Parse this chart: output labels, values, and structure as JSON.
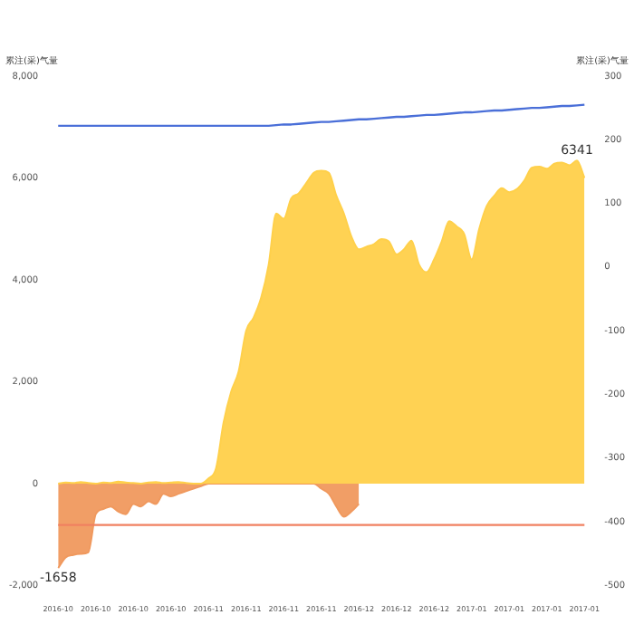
{
  "chart_data": {
    "type": "area",
    "ylabel": "累注(采)气量",
    "y2label": "累注(采)气量",
    "categories": [
      "2016-10",
      null,
      null,
      null,
      null,
      "2016-10",
      null,
      null,
      null,
      null,
      "2016-10",
      null,
      null,
      null,
      null,
      "2016-10",
      null,
      null,
      null,
      null,
      "2016-11",
      null,
      null,
      null,
      null,
      "2016-11",
      null,
      null,
      null,
      null,
      "2016-11",
      null,
      null,
      null,
      null,
      "2016-11",
      null,
      null,
      null,
      null,
      "2016-12",
      null,
      null,
      null,
      null,
      "2016-12",
      null,
      null,
      null,
      null,
      "2016-12",
      null,
      null,
      null,
      null,
      "2017-01",
      null,
      null,
      null,
      null,
      "2017-01",
      null,
      null,
      null,
      null,
      "2017-01",
      null,
      null,
      null,
      null,
      "2017-01"
    ],
    "series": [
      {
        "color": "#ffd04a",
        "values": [
          0,
          20,
          10,
          30,
          10,
          0,
          20,
          10,
          40,
          20,
          10,
          0,
          20,
          30,
          10,
          20,
          30,
          10,
          0,
          0,
          100,
          300,
          1200,
          1800,
          2200,
          3000,
          3260,
          3650,
          4300,
          5300,
          5200,
          5600,
          5700,
          5900,
          6100,
          6140,
          6100,
          5650,
          5300,
          4850,
          4600,
          4650,
          4700,
          4800,
          4750,
          4500,
          4600,
          4770,
          4300,
          4150,
          4400,
          4750,
          5150,
          5050,
          4900,
          4400,
          5000,
          5450,
          5650,
          5800,
          5720,
          5780,
          5950,
          6200,
          6220,
          6180,
          6280,
          6300,
          6250,
          6341,
          6000
        ],
        "value_labels": [
          null,
          null,
          null,
          null,
          null,
          null,
          null,
          null,
          null,
          null,
          null,
          null,
          null,
          null,
          null,
          null,
          null,
          null,
          null,
          null,
          null,
          null,
          null,
          null,
          null,
          null,
          null,
          null,
          null,
          null,
          null,
          null,
          null,
          null,
          null,
          null,
          null,
          null,
          null,
          null,
          null,
          null,
          null,
          null,
          null,
          null,
          null,
          null,
          null,
          null,
          null,
          null,
          null,
          null,
          null,
          null,
          null,
          null,
          null,
          null,
          null,
          null,
          null,
          null,
          null,
          null,
          null,
          null,
          null,
          "6341",
          null
        ]
      },
      {
        "color": "#f0995e",
        "values": [
          -1658,
          -1450,
          -1400,
          -1380,
          -1350,
          -600,
          -500,
          -450,
          -550,
          -600,
          -400,
          -450,
          -350,
          -400,
          -200,
          -250,
          -200,
          -150,
          -100,
          -50,
          0,
          0,
          0,
          0,
          0,
          0,
          0,
          0,
          0,
          0,
          0,
          0,
          0,
          0,
          0,
          -100,
          -200,
          -450,
          -650,
          -550,
          -400,
          null,
          null,
          null,
          null,
          null,
          null,
          null,
          null,
          null,
          null,
          null,
          null,
          null,
          null,
          null,
          null,
          null,
          null,
          null,
          null,
          null,
          null,
          null,
          null,
          null,
          null,
          null,
          null,
          null,
          null
        ],
        "value_labels": [
          "-1658",
          null,
          null,
          null,
          null,
          null,
          null,
          null,
          null,
          null,
          null,
          null,
          null,
          null,
          null,
          null,
          null,
          null,
          null,
          null,
          null,
          null,
          null,
          null,
          null,
          null,
          null,
          null,
          null,
          null,
          null,
          null,
          null,
          null,
          null,
          null,
          null,
          null,
          null,
          null,
          null,
          null,
          null,
          null,
          null,
          null,
          null,
          null,
          null,
          null,
          null,
          null,
          null,
          null,
          null,
          null,
          null,
          null,
          null,
          null,
          null,
          null,
          null,
          null,
          null,
          null,
          null,
          null,
          null,
          null,
          null
        ]
      },
      {
        "type": "line",
        "axis": "y2",
        "color": "#4a6fd8",
        "values": [
          222,
          222,
          222,
          222,
          222,
          222,
          222,
          222,
          222,
          222,
          222,
          222,
          222,
          222,
          222,
          222,
          222,
          222,
          222,
          222,
          222,
          222,
          222,
          222,
          222,
          222,
          222,
          222,
          222,
          223,
          224,
          224,
          225,
          226,
          227,
          228,
          228,
          229,
          230,
          231,
          232,
          232,
          233,
          234,
          235,
          236,
          236,
          237,
          238,
          239,
          239,
          240,
          241,
          242,
          243,
          243,
          244,
          245,
          246,
          246,
          247,
          248,
          249,
          250,
          250,
          251,
          252,
          253,
          253,
          254,
          255
        ]
      },
      {
        "type": "line",
        "axis": "y2",
        "color": "#f08060",
        "values": [
          -405,
          -405,
          -405,
          -405,
          -405,
          -405,
          -405,
          -405,
          -405,
          -405,
          -405,
          -405,
          -405,
          -405,
          -405,
          -405,
          -405,
          -405,
          -405,
          -405,
          -405,
          -405,
          -405,
          -405,
          -405,
          -405,
          -405,
          -405,
          -405,
          -405,
          -405,
          -405,
          -405,
          -405,
          -405,
          -405,
          -405,
          -405,
          -405,
          -405,
          -405,
          -405,
          -405,
          -405,
          -405,
          -405,
          -405,
          -405,
          -405,
          -405,
          -405,
          -405,
          -405,
          -405,
          -405,
          -405,
          -405,
          -405,
          -405,
          -405,
          -405,
          -405,
          -405,
          -405,
          -405,
          -405,
          -405,
          -405,
          -405,
          -405,
          -405
        ]
      }
    ],
    "ylim": [
      -2000,
      8000
    ],
    "yticks": [
      {
        "value": -2000,
        "label": "-2,000"
      },
      0,
      {
        "value": 2000,
        "label": "2,000"
      },
      {
        "value": 4000,
        "label": "4,000"
      },
      {
        "value": 6000,
        "label": "6,000"
      },
      {
        "value": 8000,
        "label": "8,000"
      }
    ],
    "y2lim": [
      -500,
      300
    ],
    "y2ticks": [
      -500,
      -400,
      -300,
      -200,
      -100,
      0,
      100,
      200,
      300
    ],
    "grid": false,
    "legend": false
  }
}
